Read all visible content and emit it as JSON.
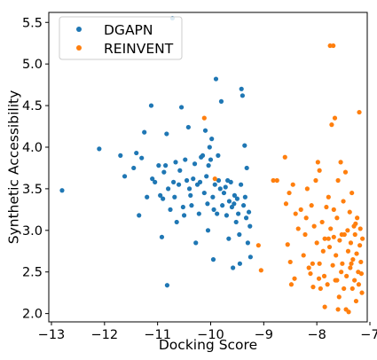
{
  "chart_data": {
    "type": "scatter",
    "title": "",
    "xlabel": "Docking Score",
    "ylabel": "Synthetic Accessibility",
    "xlim": [
      -13.05,
      -7.05
    ],
    "ylim": [
      1.9,
      5.62
    ],
    "xticks": [
      -13,
      -12,
      -11,
      -10,
      -9,
      -8,
      -7
    ],
    "xtick_labels": [
      "−13",
      "−12",
      "−11",
      "−10",
      "−9",
      "−8",
      "−7"
    ],
    "yticks": [
      2.0,
      2.5,
      3.0,
      3.5,
      4.0,
      4.5,
      5.0,
      5.5
    ],
    "ytick_labels": [
      "2.0",
      "2.5",
      "3.0",
      "3.5",
      "4.0",
      "4.5",
      "5.0",
      "5.5"
    ],
    "grid": false,
    "legend_position": "top-left",
    "series": [
      {
        "name": "DGAPN",
        "color": "#1f77b4",
        "points": [
          [
            -12.8,
            3.48
          ],
          [
            -12.1,
            3.98
          ],
          [
            -11.7,
            3.9
          ],
          [
            -11.62,
            3.65
          ],
          [
            -11.45,
            3.75
          ],
          [
            -11.4,
            3.93
          ],
          [
            -11.35,
            3.18
          ],
          [
            -11.3,
            3.87
          ],
          [
            -11.25,
            4.18
          ],
          [
            -11.2,
            3.4
          ],
          [
            -11.12,
            4.5
          ],
          [
            -11.1,
            3.62
          ],
          [
            -11.05,
            3.58
          ],
          [
            -10.98,
            3.78
          ],
          [
            -10.95,
            3.42
          ],
          [
            -10.92,
            2.92
          ],
          [
            -10.9,
            3.38
          ],
          [
            -10.88,
            3.7
          ],
          [
            -10.85,
            3.78
          ],
          [
            -10.83,
            4.16
          ],
          [
            -10.82,
            2.34
          ],
          [
            -10.8,
            3.5
          ],
          [
            -10.76,
            3.25
          ],
          [
            -10.72,
            5.55
          ],
          [
            -10.7,
            3.58
          ],
          [
            -10.68,
            3.4
          ],
          [
            -10.66,
            3.82
          ],
          [
            -10.64,
            3.1
          ],
          [
            -10.6,
            3.55
          ],
          [
            -10.58,
            3.72
          ],
          [
            -10.55,
            4.48
          ],
          [
            -10.52,
            3.28
          ],
          [
            -10.5,
            3.18
          ],
          [
            -10.48,
            3.85
          ],
          [
            -10.45,
            3.6
          ],
          [
            -10.42,
            4.24
          ],
          [
            -10.4,
            3.5
          ],
          [
            -10.38,
            3.42
          ],
          [
            -10.36,
            3.3
          ],
          [
            -10.33,
            3.62
          ],
          [
            -10.3,
            3.8
          ],
          [
            -10.28,
            2.85
          ],
          [
            -10.25,
            3.55
          ],
          [
            -10.22,
            3.2
          ],
          [
            -10.2,
            3.58
          ],
          [
            -10.18,
            3.88
          ],
          [
            -10.15,
            3.9
          ],
          [
            -10.12,
            3.45
          ],
          [
            -10.1,
            4.2
          ],
          [
            -10.08,
            3.65
          ],
          [
            -10.06,
            3.32
          ],
          [
            -10.05,
            3.0
          ],
          [
            -10.04,
            3.78
          ],
          [
            -10.02,
            4.0
          ],
          [
            -10.0,
            3.85
          ],
          [
            -9.98,
            4.1
          ],
          [
            -9.96,
            3.4
          ],
          [
            -9.95,
            2.65
          ],
          [
            -9.94,
            3.25
          ],
          [
            -9.92,
            3.55
          ],
          [
            -9.9,
            4.82
          ],
          [
            -9.88,
            3.2
          ],
          [
            -9.86,
            3.9
          ],
          [
            -9.85,
            3.6
          ],
          [
            -9.82,
            3.5
          ],
          [
            -9.8,
            4.55
          ],
          [
            -9.78,
            3.3
          ],
          [
            -9.75,
            3.45
          ],
          [
            -9.72,
            3.52
          ],
          [
            -9.7,
            3.18
          ],
          [
            -9.68,
            3.6
          ],
          [
            -9.66,
            2.9
          ],
          [
            -9.65,
            3.35
          ],
          [
            -9.62,
            3.58
          ],
          [
            -9.6,
            3.28
          ],
          [
            -9.58,
            2.55
          ],
          [
            -9.56,
            3.32
          ],
          [
            -9.55,
            3.42
          ],
          [
            -9.52,
            3.1
          ],
          [
            -9.5,
            3.38
          ],
          [
            -9.48,
            3.2
          ],
          [
            -9.46,
            2.95
          ],
          [
            -9.45,
            2.6
          ],
          [
            -9.43,
            3.55
          ],
          [
            -9.42,
            4.7
          ],
          [
            -9.4,
            4.62
          ],
          [
            -9.38,
            3.3
          ],
          [
            -9.36,
            4.02
          ],
          [
            -9.35,
            3.4
          ],
          [
            -9.33,
            3.15
          ],
          [
            -9.32,
            3.75
          ],
          [
            -9.3,
            2.85
          ],
          [
            -9.28,
            3.22
          ],
          [
            -9.26,
            3.05
          ],
          [
            -9.25,
            2.68
          ]
        ]
      },
      {
        "name": "REINVENT",
        "color": "#ff7f0e",
        "points": [
          [
            -10.12,
            4.35
          ],
          [
            -9.92,
            3.62
          ],
          [
            -9.1,
            2.82
          ],
          [
            -9.05,
            2.52
          ],
          [
            -8.82,
            3.6
          ],
          [
            -8.75,
            3.6
          ],
          [
            -8.6,
            3.88
          ],
          [
            -8.58,
            3.32
          ],
          [
            -8.55,
            2.83
          ],
          [
            -8.52,
            3.45
          ],
          [
            -8.5,
            2.62
          ],
          [
            -8.48,
            2.35
          ],
          [
            -8.45,
            3.55
          ],
          [
            -8.42,
            2.42
          ],
          [
            -8.4,
            3.2
          ],
          [
            -8.35,
            3.02
          ],
          [
            -8.3,
            3.25
          ],
          [
            -8.25,
            2.7
          ],
          [
            -8.22,
            2.95
          ],
          [
            -8.2,
            3.15
          ],
          [
            -8.18,
            3.5
          ],
          [
            -8.15,
            2.55
          ],
          [
            -8.12,
            2.48
          ],
          [
            -8.1,
            3.3
          ],
          [
            -8.08,
            2.6
          ],
          [
            -8.05,
            3.05
          ],
          [
            -8.02,
            3.6
          ],
          [
            -8.0,
            2.85
          ],
          [
            -7.98,
            3.82
          ],
          [
            -7.96,
            2.42
          ],
          [
            -7.95,
            3.72
          ],
          [
            -7.93,
            2.3
          ],
          [
            -7.9,
            3.1
          ],
          [
            -7.88,
            2.75
          ],
          [
            -7.86,
            2.45
          ],
          [
            -7.85,
            2.9
          ],
          [
            -7.82,
            3.28
          ],
          [
            -7.8,
            2.35
          ],
          [
            -7.78,
            3.4
          ],
          [
            -7.76,
            2.8
          ],
          [
            -7.75,
            5.22
          ],
          [
            -7.74,
            3.02
          ],
          [
            -7.72,
            4.27
          ],
          [
            -7.7,
            2.58
          ],
          [
            -7.69,
            5.22
          ],
          [
            -7.68,
            2.92
          ],
          [
            -7.66,
            4.35
          ],
          [
            -7.65,
            2.4
          ],
          [
            -7.64,
            2.7
          ],
          [
            -7.62,
            3.15
          ],
          [
            -7.6,
            3.6
          ],
          [
            -7.58,
            2.2
          ],
          [
            -7.57,
            2.88
          ],
          [
            -7.55,
            3.82
          ],
          [
            -7.54,
            2.5
          ],
          [
            -7.52,
            2.6
          ],
          [
            -7.5,
            3.35
          ],
          [
            -7.49,
            2.3
          ],
          [
            -7.48,
            2.95
          ],
          [
            -7.46,
            3.7
          ],
          [
            -7.45,
            2.05
          ],
          [
            -7.44,
            2.45
          ],
          [
            -7.42,
            3.0
          ],
          [
            -7.41,
            2.75
          ],
          [
            -7.4,
            2.02
          ],
          [
            -7.38,
            3.22
          ],
          [
            -7.37,
            2.55
          ],
          [
            -7.36,
            2.85
          ],
          [
            -7.34,
            3.45
          ],
          [
            -7.33,
            2.3
          ],
          [
            -7.32,
            2.65
          ],
          [
            -7.3,
            3.05
          ],
          [
            -7.29,
            2.4
          ],
          [
            -7.28,
            2.95
          ],
          [
            -7.26,
            2.15
          ],
          [
            -7.25,
            2.72
          ],
          [
            -7.24,
            3.15
          ],
          [
            -7.22,
            2.5
          ],
          [
            -7.21,
            2.35
          ],
          [
            -7.2,
            4.42
          ],
          [
            -7.19,
            2.82
          ],
          [
            -7.18,
            3.02
          ],
          [
            -7.17,
            2.62
          ],
          [
            -7.16,
            2.48
          ],
          [
            -7.15,
            2.25
          ],
          [
            -7.14,
            2.9
          ],
          [
            -7.85,
            2.08
          ],
          [
            -7.95,
            2.6
          ],
          [
            -8.07,
            2.32
          ],
          [
            -7.78,
            2.9
          ],
          [
            -7.62,
            2.4
          ],
          [
            -7.6,
            2.05
          ],
          [
            -7.68,
            3.25
          ],
          [
            -7.53,
            2.95
          ],
          [
            -7.35,
            2.6
          ],
          [
            -7.27,
            3.08
          ]
        ]
      }
    ]
  }
}
